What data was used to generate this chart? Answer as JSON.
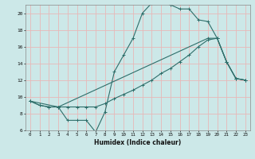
{
  "xlabel": "Humidex (Indice chaleur)",
  "background_color": "#cce8e8",
  "grid_color": "#e8b8b8",
  "line_color": "#2e6e6a",
  "xlim": [
    -0.5,
    23.5
  ],
  "ylim": [
    6,
    21
  ],
  "yticks": [
    6,
    8,
    10,
    12,
    14,
    16,
    18,
    20
  ],
  "xticks": [
    0,
    1,
    2,
    3,
    4,
    5,
    6,
    7,
    8,
    9,
    10,
    11,
    12,
    13,
    14,
    15,
    16,
    17,
    18,
    19,
    20,
    21,
    22,
    23
  ],
  "series1_x": [
    0,
    1,
    2,
    3,
    4,
    5,
    6,
    7,
    8,
    9,
    10,
    11,
    12,
    13,
    14,
    15,
    16,
    17,
    18,
    19,
    20,
    21,
    22,
    23
  ],
  "series1_y": [
    9.5,
    9.0,
    8.8,
    8.8,
    7.2,
    7.2,
    7.2,
    5.8,
    8.2,
    13.0,
    15.0,
    17.0,
    20.0,
    21.2,
    21.4,
    21.0,
    20.5,
    20.5,
    19.2,
    19.0,
    17.0,
    14.2,
    12.2,
    12.0
  ],
  "series2_x": [
    0,
    1,
    2,
    3,
    4,
    5,
    6,
    7,
    8,
    9,
    10,
    11,
    12,
    13,
    14,
    15,
    16,
    17,
    18,
    19,
    20,
    21,
    22,
    23
  ],
  "series2_y": [
    9.5,
    9.0,
    8.8,
    8.8,
    8.8,
    8.8,
    8.8,
    8.8,
    9.2,
    9.8,
    10.3,
    10.8,
    11.4,
    12.0,
    12.8,
    13.4,
    14.2,
    15.0,
    16.0,
    16.8,
    17.0,
    14.2,
    12.2,
    12.0
  ],
  "series3_x": [
    0,
    3,
    19,
    20,
    21,
    22,
    23
  ],
  "series3_y": [
    9.5,
    8.8,
    17.0,
    17.0,
    14.2,
    12.2,
    12.0
  ]
}
